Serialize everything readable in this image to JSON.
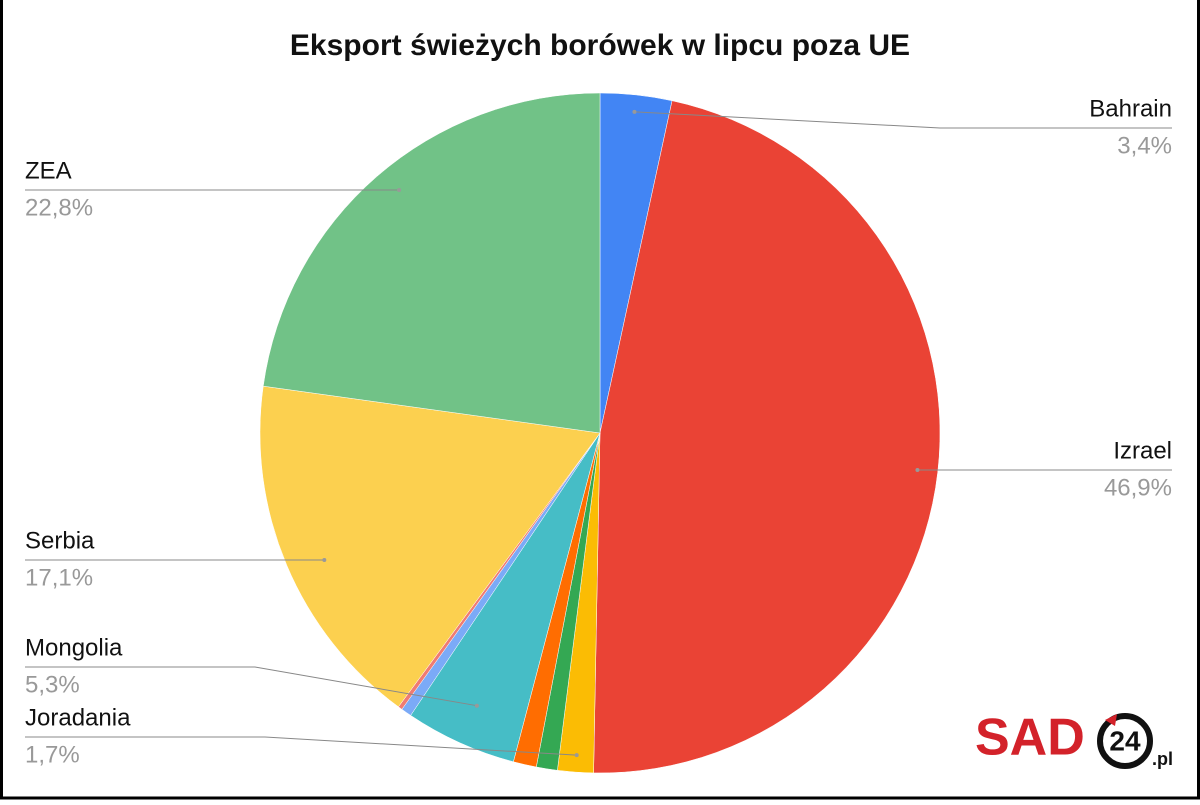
{
  "chart_data": {
    "type": "pie",
    "title": "Eksport świeżych borówek w lipcu poza UE",
    "categories": [
      "Bahrain",
      "Izrael",
      "Joradania",
      null,
      null,
      "Mongolia",
      null,
      null,
      "Serbia",
      "ZEA"
    ],
    "values": [
      3.4,
      46.9,
      1.7,
      1.0,
      1.1,
      5.3,
      0.5,
      0.2,
      17.1,
      22.8
    ],
    "value_labels": [
      "3,4%",
      "46,9%",
      "1,7%",
      null,
      null,
      "5,3%",
      null,
      null,
      "17,1%",
      "22,8%"
    ],
    "colors": [
      "#4285f4",
      "#ea4335",
      "#fbbc04",
      "#34a853",
      "#ff6d01",
      "#46bdc6",
      "#7baaf7",
      "#f07b72",
      "#fcd04f",
      "#71c287"
    ]
  },
  "logo": {
    "text": "SAD",
    "number": "24",
    "suffix": ".pl"
  }
}
